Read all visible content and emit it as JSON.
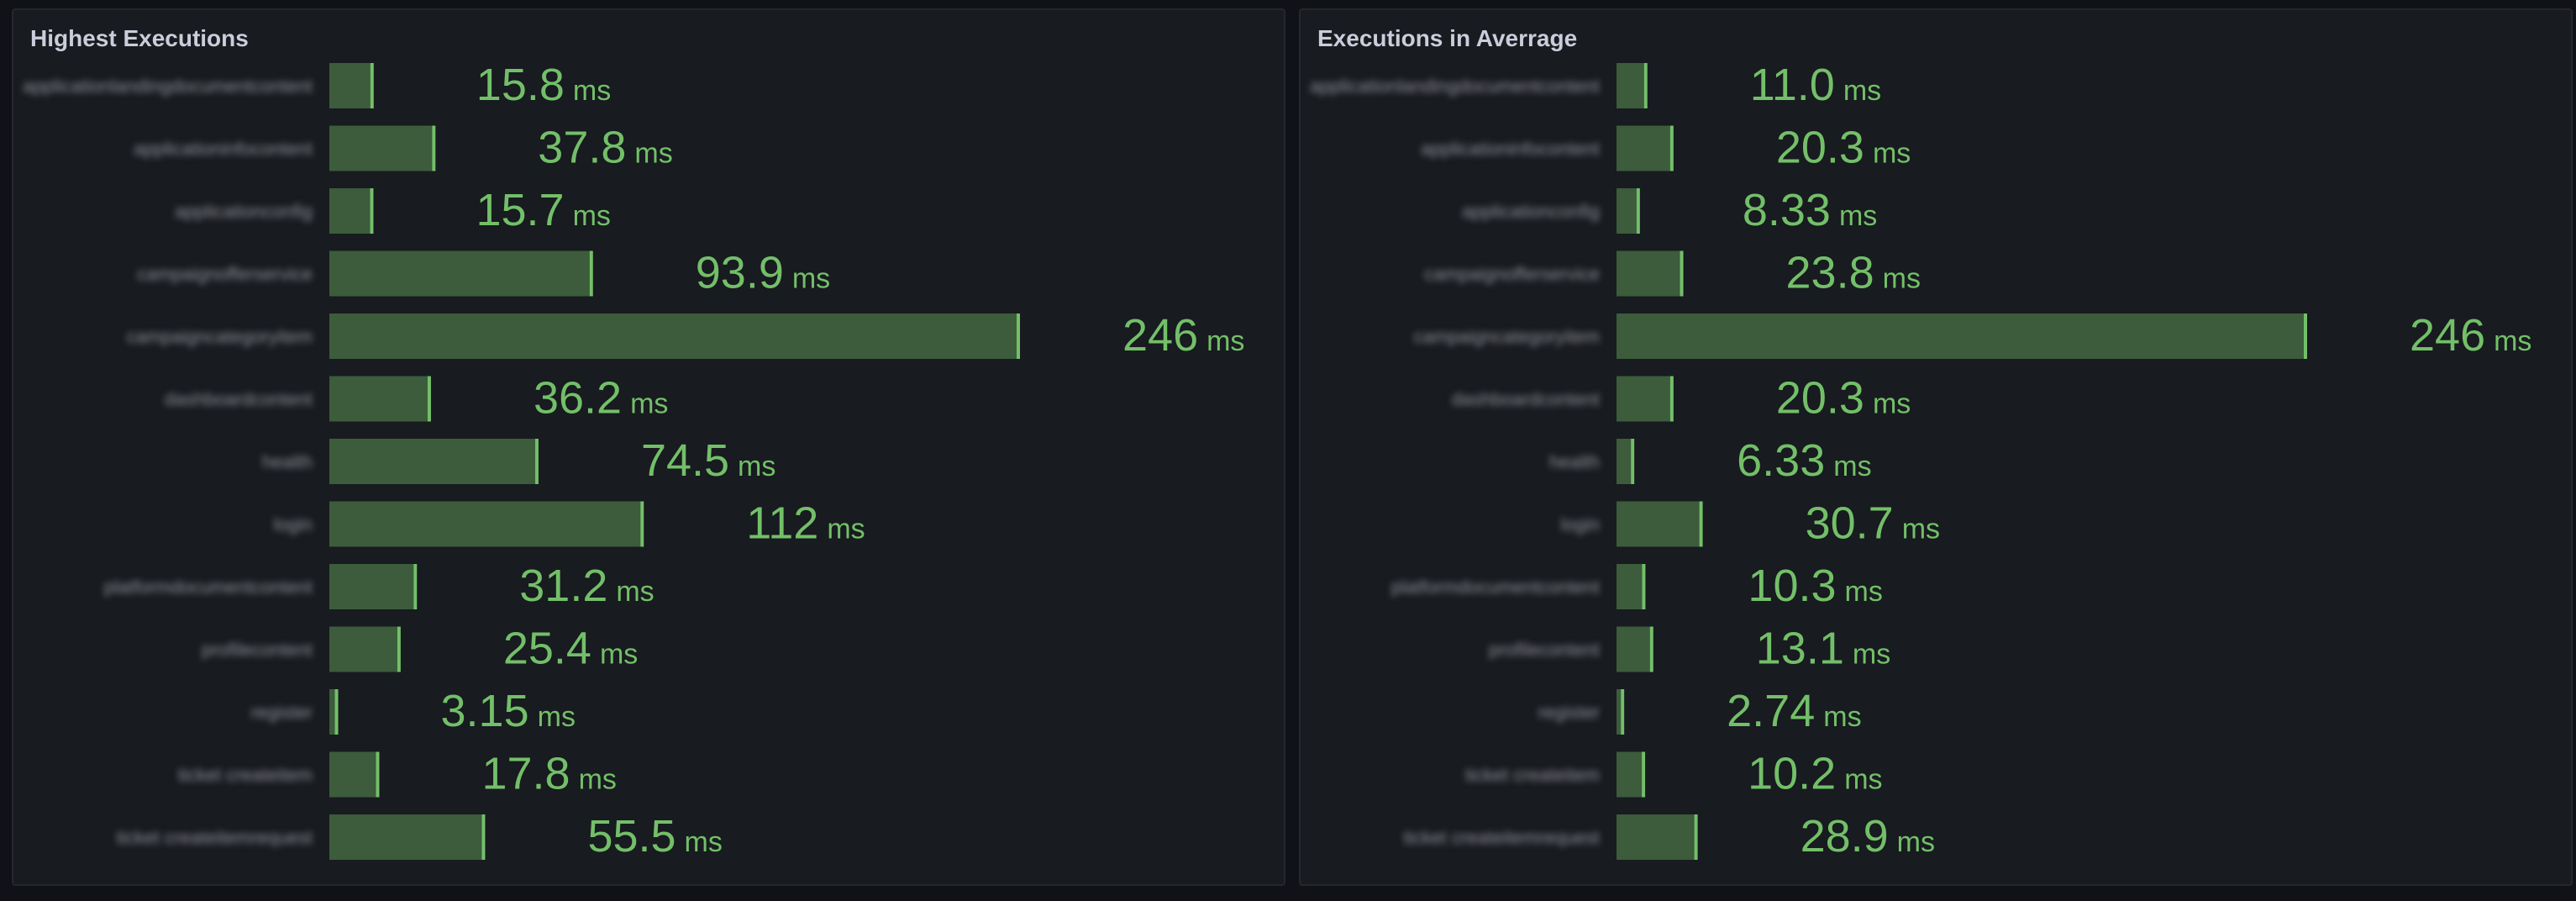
{
  "chart_data": [
    {
      "type": "bar",
      "orientation": "horizontal",
      "title": "Highest Executions",
      "unit": "ms",
      "categories": [
        "applicationlandingdocumentcontent",
        "applicationinfocontent",
        "applicationconfig",
        "campaignofferservice",
        "campaigncategoryitem",
        "dashboardcontent",
        "health",
        "login",
        "platformdocumentcontent",
        "profilecontent",
        "register",
        "ticket createitem",
        "ticket createitemrequest"
      ],
      "values": [
        15.8,
        37.8,
        15.7,
        93.9,
        246,
        36.2,
        74.5,
        112,
        31.2,
        25.4,
        3.15,
        17.8,
        55.5
      ],
      "value_labels": [
        "15.8",
        "37.8",
        "15.7",
        "93.9",
        "246",
        "36.2",
        "74.5",
        "112",
        "31.2",
        "25.4",
        "3.15",
        "17.8",
        "55.5"
      ],
      "xlim": [
        0,
        246
      ],
      "grid": false,
      "legend": "none",
      "color": "#73bf69"
    },
    {
      "type": "bar",
      "orientation": "horizontal",
      "title": "Executions in Averrage",
      "unit": "ms",
      "categories": [
        "applicationlandingdocumentcontent",
        "applicationinfocontent",
        "applicationconfig",
        "campaignofferservice",
        "campaigncategoryitem",
        "dashboardcontent",
        "health",
        "login",
        "platformdocumentcontent",
        "profilecontent",
        "register",
        "ticket createitem",
        "ticket createitemrequest"
      ],
      "values": [
        11.0,
        20.3,
        8.33,
        23.8,
        246,
        20.3,
        6.33,
        30.7,
        10.3,
        13.1,
        2.74,
        10.2,
        28.9
      ],
      "value_labels": [
        "11.0",
        "20.3",
        "8.33",
        "23.8",
        "246",
        "20.3",
        "6.33",
        "30.7",
        "10.3",
        "13.1",
        "2.74",
        "10.2",
        "28.9"
      ],
      "xlim": [
        0,
        246
      ],
      "grid": false,
      "legend": "none",
      "color": "#73bf69"
    }
  ]
}
